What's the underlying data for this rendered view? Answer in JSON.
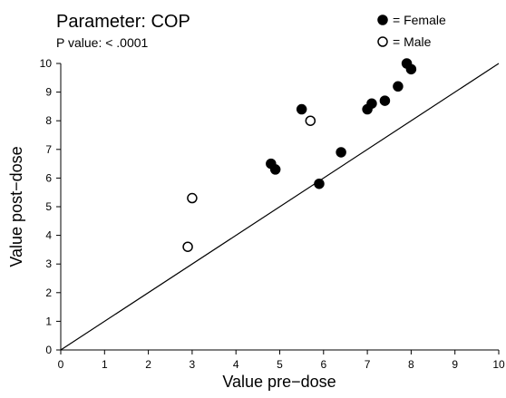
{
  "chart_data": {
    "type": "scatter",
    "title": "Parameter: COP",
    "subtitle": "P value: < .0001",
    "xlabel": "Value pre−dose",
    "ylabel": "Value post−dose",
    "xlim": [
      0,
      10
    ],
    "ylim": [
      0,
      10
    ],
    "x_ticks": [
      "0",
      "1",
      "2",
      "3",
      "4",
      "5",
      "6",
      "7",
      "8",
      "9",
      "10"
    ],
    "y_ticks": [
      "0",
      "1",
      "2",
      "3",
      "4",
      "5",
      "6",
      "7",
      "8",
      "9",
      "10"
    ],
    "grid": false,
    "legend_position": "top-right",
    "reference_line": {
      "type": "identity",
      "from": [
        0,
        0
      ],
      "to": [
        10,
        10
      ]
    },
    "series": [
      {
        "name": "= Female",
        "marker": "filled-circle",
        "color": "#000000",
        "points": [
          {
            "x": 4.8,
            "y": 6.5
          },
          {
            "x": 4.9,
            "y": 6.3
          },
          {
            "x": 5.5,
            "y": 8.4
          },
          {
            "x": 5.9,
            "y": 5.8
          },
          {
            "x": 6.4,
            "y": 6.9
          },
          {
            "x": 7.0,
            "y": 8.4
          },
          {
            "x": 7.1,
            "y": 8.6
          },
          {
            "x": 7.4,
            "y": 8.7
          },
          {
            "x": 7.7,
            "y": 9.2
          },
          {
            "x": 7.9,
            "y": 10.0
          },
          {
            "x": 8.0,
            "y": 9.8
          }
        ]
      },
      {
        "name": "= Male",
        "marker": "open-circle",
        "color": "#000000",
        "points": [
          {
            "x": 2.9,
            "y": 3.6
          },
          {
            "x": 3.0,
            "y": 5.3
          },
          {
            "x": 5.7,
            "y": 8.0
          }
        ]
      }
    ]
  }
}
